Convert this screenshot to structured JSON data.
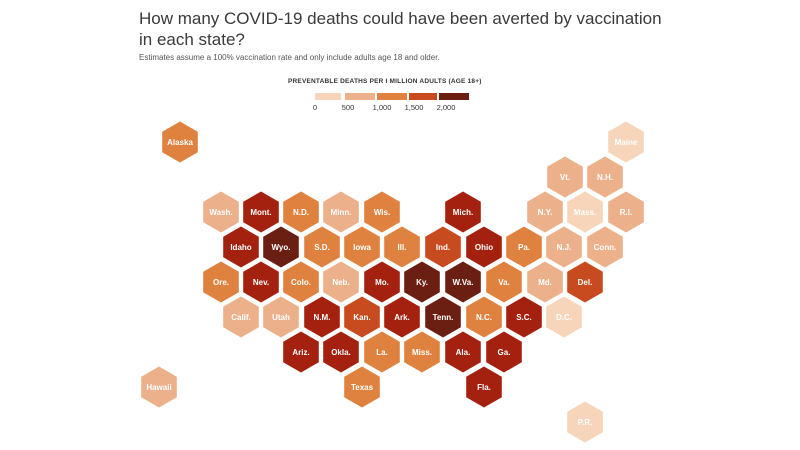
{
  "title": "How many COVID-19 deaths could have been averted by vaccination in each state?",
  "subtitle": "Estimates assume a 100% vaccination rate and only include adults age 18 and older.",
  "legend": {
    "title": "PREVENTABLE DEATHS PER I MILLION ADULTS (AGE 18+)",
    "colors": [
      "#f6d5bb",
      "#ecb08a",
      "#e0823f",
      "#c84b1f",
      "#a5210f",
      "#6b1f12"
    ],
    "tick_labels": [
      "0",
      "500",
      "1,000",
      "1,500",
      "2,000"
    ]
  },
  "states": [
    {
      "label": "Alaska",
      "class": 2
    },
    {
      "label": "Maine",
      "class": 0
    },
    {
      "label": "Vt.",
      "class": 1
    },
    {
      "label": "N.H.",
      "class": 1
    },
    {
      "label": "Wash.",
      "class": 1
    },
    {
      "label": "Mont.",
      "class": 4
    },
    {
      "label": "N.D.",
      "class": 2
    },
    {
      "label": "Minn.",
      "class": 1
    },
    {
      "label": "Wis.",
      "class": 2
    },
    {
      "label": "Mich.",
      "class": 4
    },
    {
      "label": "N.Y.",
      "class": 1
    },
    {
      "label": "Mass.",
      "class": 0
    },
    {
      "label": "R.I.",
      "class": 1
    },
    {
      "label": "Idaho",
      "class": 4
    },
    {
      "label": "Wyo.",
      "class": 5
    },
    {
      "label": "S.D.",
      "class": 2
    },
    {
      "label": "Iowa",
      "class": 2
    },
    {
      "label": "Ill.",
      "class": 2
    },
    {
      "label": "Ind.",
      "class": 3
    },
    {
      "label": "Ohio",
      "class": 4
    },
    {
      "label": "Pa.",
      "class": 2
    },
    {
      "label": "N.J.",
      "class": 1
    },
    {
      "label": "Conn.",
      "class": 1
    },
    {
      "label": "Ore.",
      "class": 2
    },
    {
      "label": "Nev.",
      "class": 4
    },
    {
      "label": "Colo.",
      "class": 2
    },
    {
      "label": "Neb.",
      "class": 1
    },
    {
      "label": "Mo.",
      "class": 4
    },
    {
      "label": "Ky.",
      "class": 5
    },
    {
      "label": "W.Va.",
      "class": 5
    },
    {
      "label": "Va.",
      "class": 2
    },
    {
      "label": "Md.",
      "class": 1
    },
    {
      "label": "Del.",
      "class": 3
    },
    {
      "label": "Calif.",
      "class": 1
    },
    {
      "label": "Utah",
      "class": 1
    },
    {
      "label": "N.M.",
      "class": 4
    },
    {
      "label": "Kan.",
      "class": 3
    },
    {
      "label": "Ark.",
      "class": 4
    },
    {
      "label": "Tenn.",
      "class": 5
    },
    {
      "label": "N.C.",
      "class": 2
    },
    {
      "label": "S.C.",
      "class": 4
    },
    {
      "label": "D.C.",
      "class": 0
    },
    {
      "label": "Ariz.",
      "class": 4
    },
    {
      "label": "Okla.",
      "class": 4
    },
    {
      "label": "La.",
      "class": 2
    },
    {
      "label": "Miss.",
      "class": 2
    },
    {
      "label": "Ala.",
      "class": 4
    },
    {
      "label": "Ga.",
      "class": 4
    },
    {
      "label": "Hawaii",
      "class": 1
    },
    {
      "label": "Texas",
      "class": 2
    },
    {
      "label": "Fla.",
      "class": 4
    },
    {
      "label": "P.R.",
      "class": 0
    }
  ]
}
